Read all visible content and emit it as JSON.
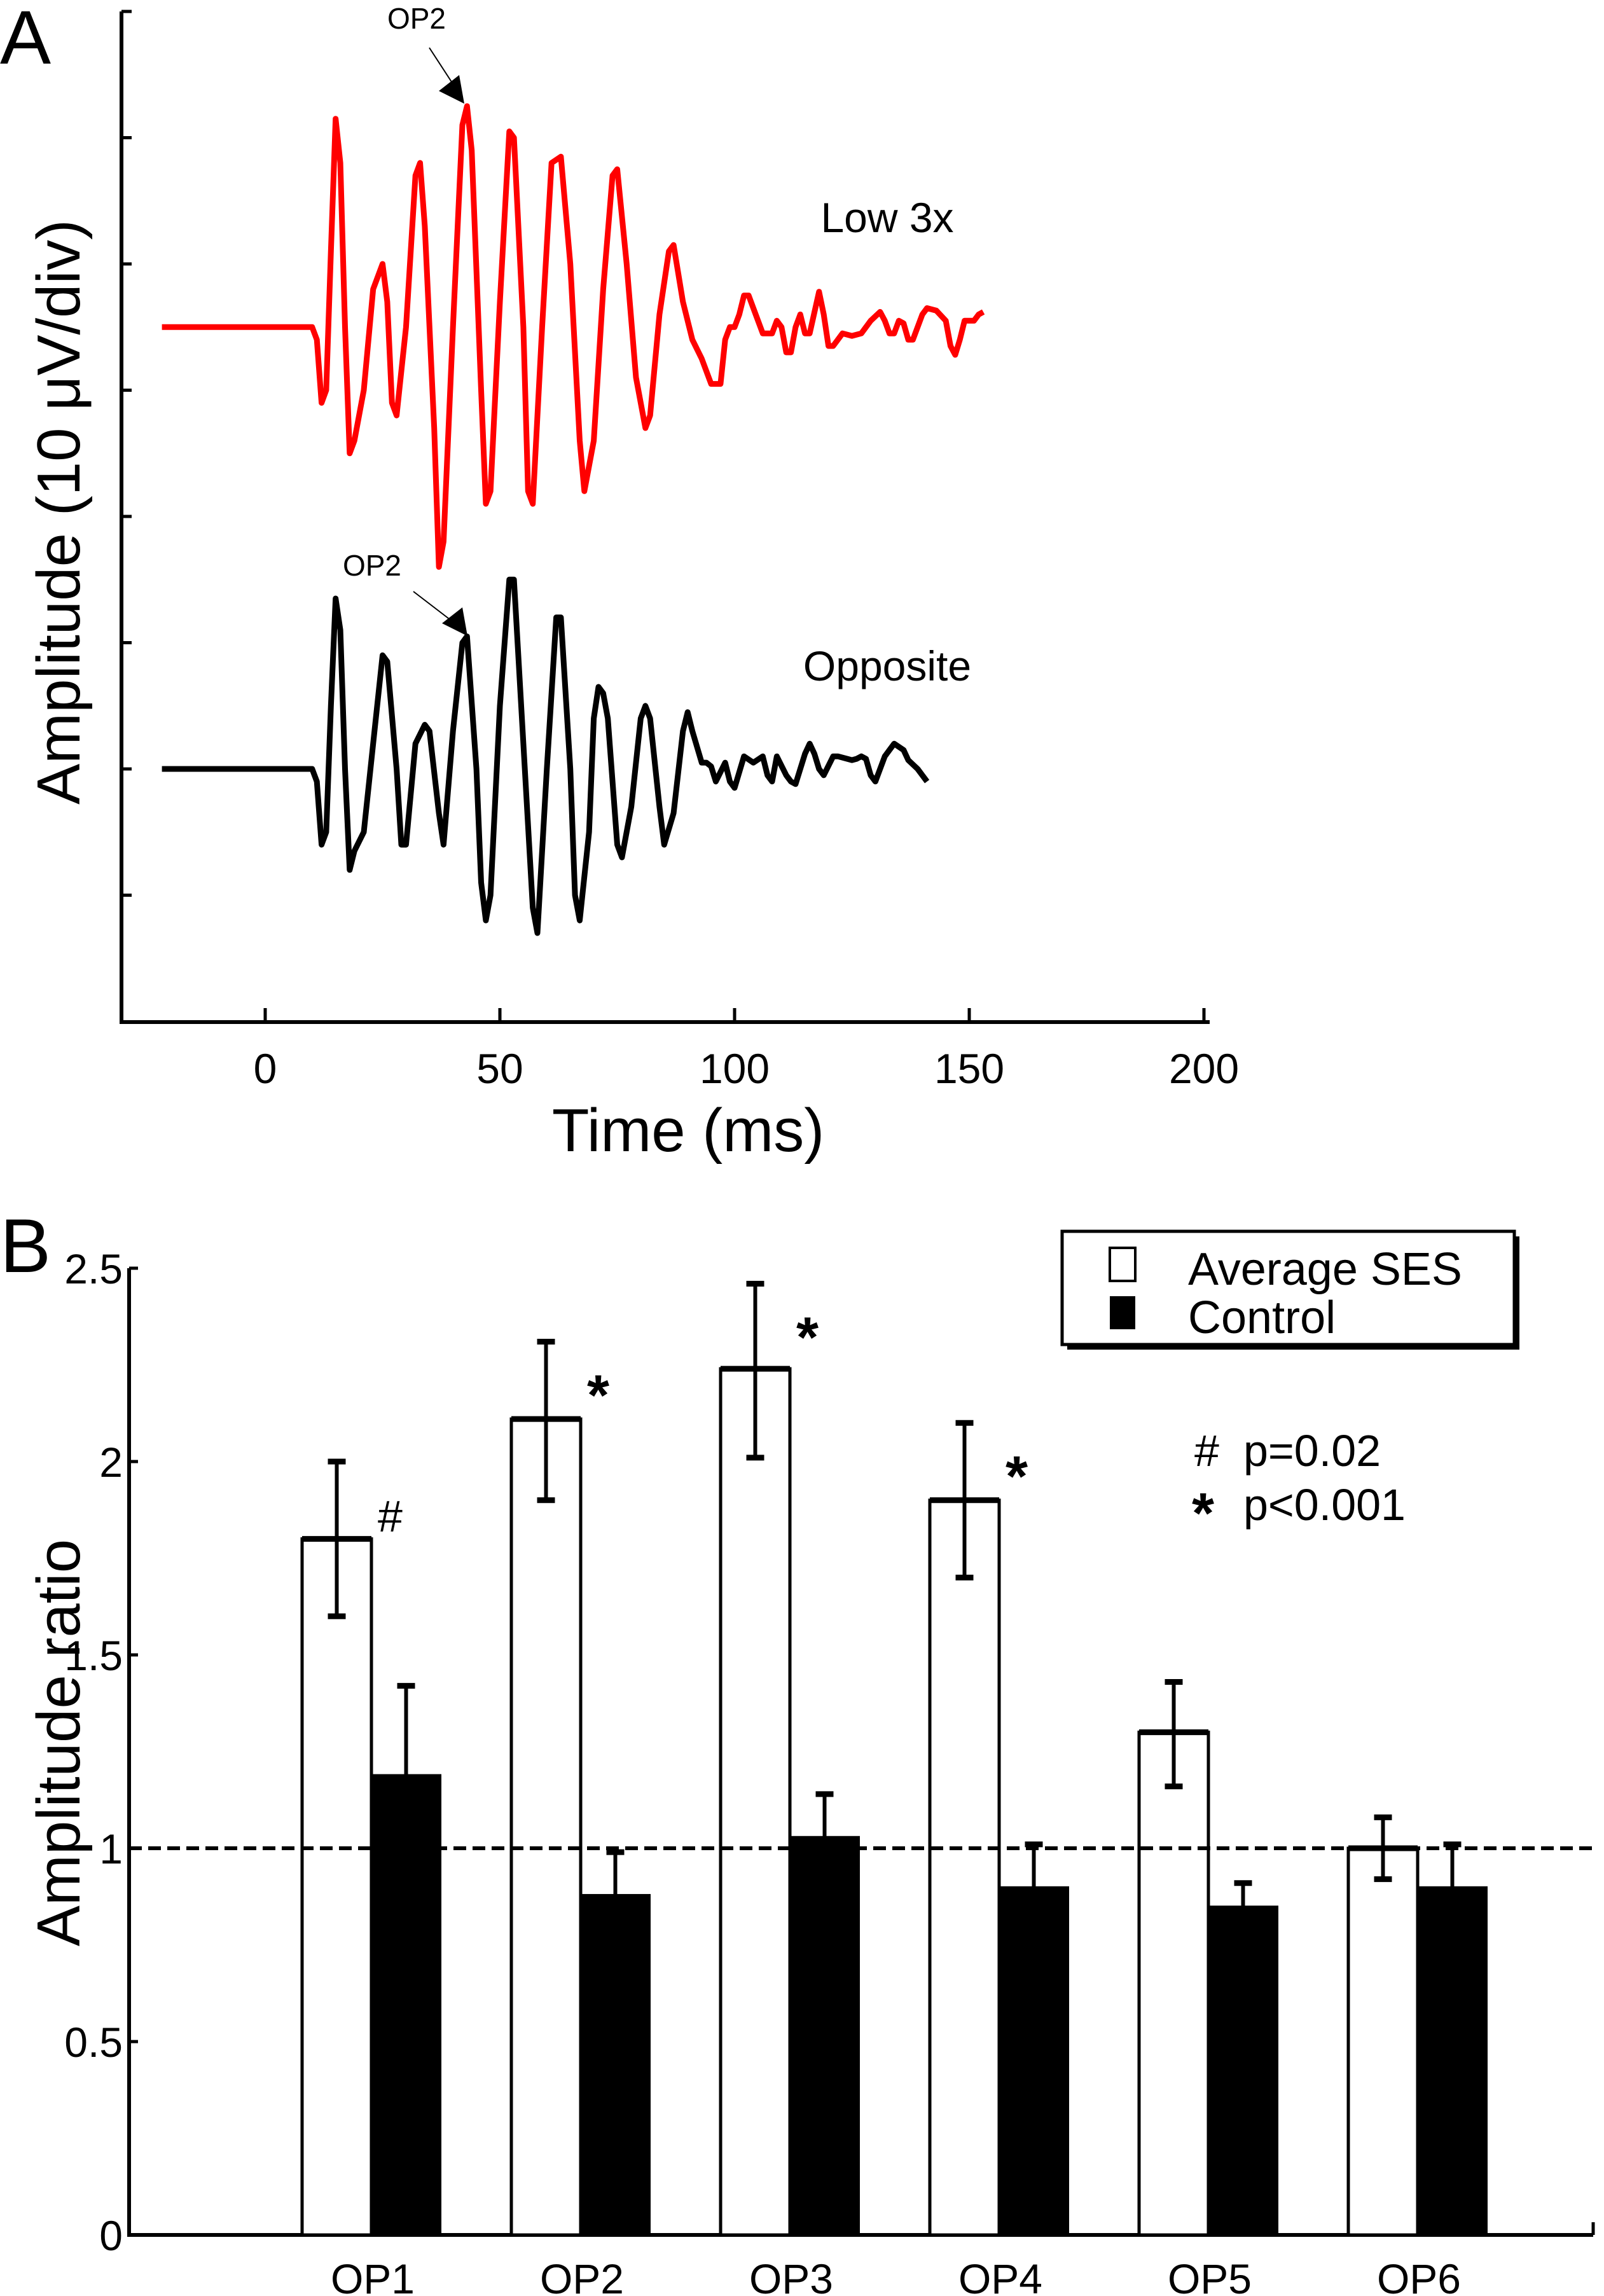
{
  "chart_data": [
    {
      "panel": "A",
      "type": "line",
      "title": "",
      "xlabel": "Time (ms)",
      "ylabel": "Amplitude (10 μV/div)",
      "xlim": [
        -30,
        200
      ],
      "xticks": [
        0,
        50,
        100,
        150,
        200
      ],
      "ylim_div": [
        -8,
        0
      ],
      "grid": false,
      "series": [
        {
          "name": "Low 3x",
          "color": "#ff0000",
          "baseline_div": -2.5,
          "annotation": "OP2",
          "points": [
            [
              -22,
              0
            ],
            [
              10,
              0
            ],
            [
              11,
              -0.1
            ],
            [
              12,
              -0.6
            ],
            [
              13,
              -0.5
            ],
            [
              14,
              0.6
            ],
            [
              15,
              1.65
            ],
            [
              16,
              1.3
            ],
            [
              17,
              0
            ],
            [
              18,
              -1.0
            ],
            [
              19,
              -0.9
            ],
            [
              21,
              -0.5
            ],
            [
              23,
              0.3
            ],
            [
              25,
              0.5
            ],
            [
              26,
              0.2
            ],
            [
              27,
              -0.6
            ],
            [
              28,
              -0.7
            ],
            [
              30,
              0
            ],
            [
              32,
              1.2
            ],
            [
              33,
              1.3
            ],
            [
              34,
              0.8
            ],
            [
              36,
              -0.8
            ],
            [
              37,
              -1.9
            ],
            [
              38,
              -1.7
            ],
            [
              40,
              0
            ],
            [
              42,
              1.6
            ],
            [
              43,
              1.75
            ],
            [
              44,
              1.4
            ],
            [
              46,
              -0.5
            ],
            [
              47,
              -1.4
            ],
            [
              48,
              -1.3
            ],
            [
              50,
              0.2
            ],
            [
              52,
              1.55
            ],
            [
              53,
              1.5
            ],
            [
              55,
              0
            ],
            [
              56,
              -1.3
            ],
            [
              57,
              -1.4
            ],
            [
              59,
              0
            ],
            [
              61,
              1.3
            ],
            [
              63,
              1.35
            ],
            [
              65,
              0.5
            ],
            [
              67,
              -0.9
            ],
            [
              68,
              -1.3
            ],
            [
              70,
              -0.9
            ],
            [
              72,
              0.3
            ],
            [
              74,
              1.2
            ],
            [
              75,
              1.25
            ],
            [
              77,
              0.5
            ],
            [
              79,
              -0.4
            ],
            [
              81,
              -0.8
            ],
            [
              82,
              -0.7
            ],
            [
              84,
              0.1
            ],
            [
              86,
              0.6
            ],
            [
              87,
              0.65
            ],
            [
              89,
              0.2
            ],
            [
              91,
              -0.1
            ],
            [
              93,
              -0.25
            ],
            [
              95,
              -0.45
            ],
            [
              97,
              -0.45
            ],
            [
              98,
              -0.1
            ],
            [
              99,
              0
            ],
            [
              100,
              0
            ],
            [
              101,
              0.1
            ],
            [
              102,
              0.25
            ],
            [
              103,
              0.25
            ],
            [
              104,
              0.15
            ],
            [
              106,
              -0.05
            ],
            [
              108,
              -0.05
            ],
            [
              109,
              0.05
            ],
            [
              110,
              0
            ],
            [
              111,
              -0.2
            ],
            [
              112,
              -0.2
            ],
            [
              113,
              0
            ],
            [
              114,
              0.1
            ],
            [
              115,
              -0.05
            ],
            [
              116,
              -0.05
            ],
            [
              118,
              0.28
            ],
            [
              119,
              0.1
            ],
            [
              120,
              -0.15
            ],
            [
              121,
              -0.15
            ],
            [
              123,
              -0.05
            ],
            [
              125,
              -0.07
            ],
            [
              127,
              -0.05
            ],
            [
              129,
              0.05
            ],
            [
              131,
              0.12
            ],
            [
              132,
              0.05
            ],
            [
              133,
              -0.05
            ],
            [
              134,
              -0.05
            ],
            [
              135,
              0.05
            ],
            [
              136,
              0.03
            ],
            [
              137,
              -0.1
            ],
            [
              138,
              -0.1
            ],
            [
              140,
              0.1
            ],
            [
              141,
              0.15
            ],
            [
              143,
              0.13
            ],
            [
              145,
              0.05
            ],
            [
              146,
              -0.15
            ],
            [
              147,
              -0.22
            ],
            [
              148,
              -0.1
            ],
            [
              149,
              0.05
            ],
            [
              151,
              0.05
            ],
            [
              152,
              0.1
            ],
            [
              153,
              0.12
            ]
          ]
        },
        {
          "name": "Opposite",
          "color": "#000000",
          "baseline_div": -6,
          "annotation": "OP2",
          "points": [
            [
              -22,
              0
            ],
            [
              10,
              0
            ],
            [
              11,
              -0.1
            ],
            [
              12,
              -0.6
            ],
            [
              13,
              -0.5
            ],
            [
              14,
              0.5
            ],
            [
              15,
              1.35
            ],
            [
              16,
              1.1
            ],
            [
              17,
              0
            ],
            [
              18,
              -0.8
            ],
            [
              19,
              -0.65
            ],
            [
              21,
              -0.5
            ],
            [
              23,
              0.2
            ],
            [
              25,
              0.9
            ],
            [
              26,
              0.85
            ],
            [
              28,
              0
            ],
            [
              29,
              -0.6
            ],
            [
              30,
              -0.6
            ],
            [
              32,
              0.2
            ],
            [
              34,
              0.35
            ],
            [
              35,
              0.3
            ],
            [
              37,
              -0.35
            ],
            [
              38,
              -0.6
            ],
            [
              40,
              0.3
            ],
            [
              42,
              1.0
            ],
            [
              43,
              1.05
            ],
            [
              45,
              0
            ],
            [
              46,
              -0.9
            ],
            [
              47,
              -1.2
            ],
            [
              48,
              -1.0
            ],
            [
              50,
              0.5
            ],
            [
              52,
              1.5
            ],
            [
              53,
              1.5
            ],
            [
              55,
              0.2
            ],
            [
              57,
              -1.1
            ],
            [
              58,
              -1.3
            ],
            [
              60,
              0
            ],
            [
              62,
              1.2
            ],
            [
              63,
              1.2
            ],
            [
              65,
              0
            ],
            [
              66,
              -1.0
            ],
            [
              67,
              -1.2
            ],
            [
              69,
              -0.5
            ],
            [
              70,
              0.4
            ],
            [
              71,
              0.65
            ],
            [
              72,
              0.6
            ],
            [
              73,
              0.4
            ],
            [
              75,
              -0.6
            ],
            [
              76,
              -0.7
            ],
            [
              78,
              -0.3
            ],
            [
              80,
              0.4
            ],
            [
              81,
              0.5
            ],
            [
              82,
              0.4
            ],
            [
              84,
              -0.3
            ],
            [
              85,
              -0.6
            ],
            [
              87,
              -0.35
            ],
            [
              89,
              0.3
            ],
            [
              90,
              0.45
            ],
            [
              91,
              0.3
            ],
            [
              93,
              0.05
            ],
            [
              94,
              0.05
            ],
            [
              95,
              0.02
            ],
            [
              96,
              -0.1
            ],
            [
              98,
              0.05
            ],
            [
              99,
              -0.1
            ],
            [
              100,
              -0.15
            ],
            [
              102,
              0.1
            ],
            [
              104,
              0.05
            ],
            [
              106,
              0.1
            ],
            [
              107,
              -0.05
            ],
            [
              108,
              -0.1
            ],
            [
              109,
              0.1
            ],
            [
              111,
              -0.05
            ],
            [
              112,
              -0.1
            ],
            [
              113,
              -0.12
            ],
            [
              115,
              0.12
            ],
            [
              116,
              0.2
            ],
            [
              117,
              0.12
            ],
            [
              118,
              0.0
            ],
            [
              119,
              -0.05
            ],
            [
              121,
              0.1
            ],
            [
              122,
              0.1
            ],
            [
              124,
              0.08
            ],
            [
              125,
              0.07
            ],
            [
              126,
              0.08
            ],
            [
              127,
              0.1
            ],
            [
              128,
              0.08
            ],
            [
              129,
              -0.05
            ],
            [
              130,
              -0.1
            ],
            [
              132,
              0.1
            ],
            [
              134,
              0.2
            ],
            [
              136,
              0.15
            ],
            [
              137,
              0.07
            ],
            [
              139,
              0.0
            ],
            [
              140,
              -0.05
            ],
            [
              141,
              -0.1
            ]
          ]
        }
      ]
    },
    {
      "panel": "B",
      "type": "bar",
      "title": "",
      "xlabel": "",
      "ylabel": "Amplitude ratio",
      "ylim": [
        0,
        2.5
      ],
      "yticks": [
        "0",
        "0.5",
        "1",
        "1.5",
        "2",
        "2.5"
      ],
      "grid": false,
      "reference_line": 1,
      "legend_placement": "top-right",
      "categories": [
        "OP1",
        "OP2",
        "OP3",
        "OP4",
        "OP5",
        "OP6"
      ],
      "series": [
        {
          "name": "Average SES",
          "fill": "#ffffff",
          "values": [
            1.8,
            2.11,
            2.24,
            1.9,
            1.3,
            1.0
          ],
          "err_low": [
            1.6,
            1.9,
            2.01,
            1.7,
            1.16,
            0.92
          ],
          "err_high": [
            2.0,
            2.31,
            2.46,
            2.1,
            1.43,
            1.08
          ],
          "markers": [
            "#",
            "*",
            "*",
            "*",
            "",
            ""
          ]
        },
        {
          "name": "Control",
          "fill": "#000000",
          "values": [
            1.19,
            0.88,
            1.03,
            0.9,
            0.85,
            0.9
          ],
          "err_high": [
            1.42,
            0.99,
            1.14,
            1.01,
            0.91,
            1.01
          ]
        }
      ],
      "significance_notes": [
        {
          "symbol": "#",
          "text": "p=0.02"
        },
        {
          "symbol": "*",
          "text": "p<0.001"
        }
      ]
    }
  ],
  "labels": {
    "panel_a": "A",
    "panel_b": "B"
  }
}
